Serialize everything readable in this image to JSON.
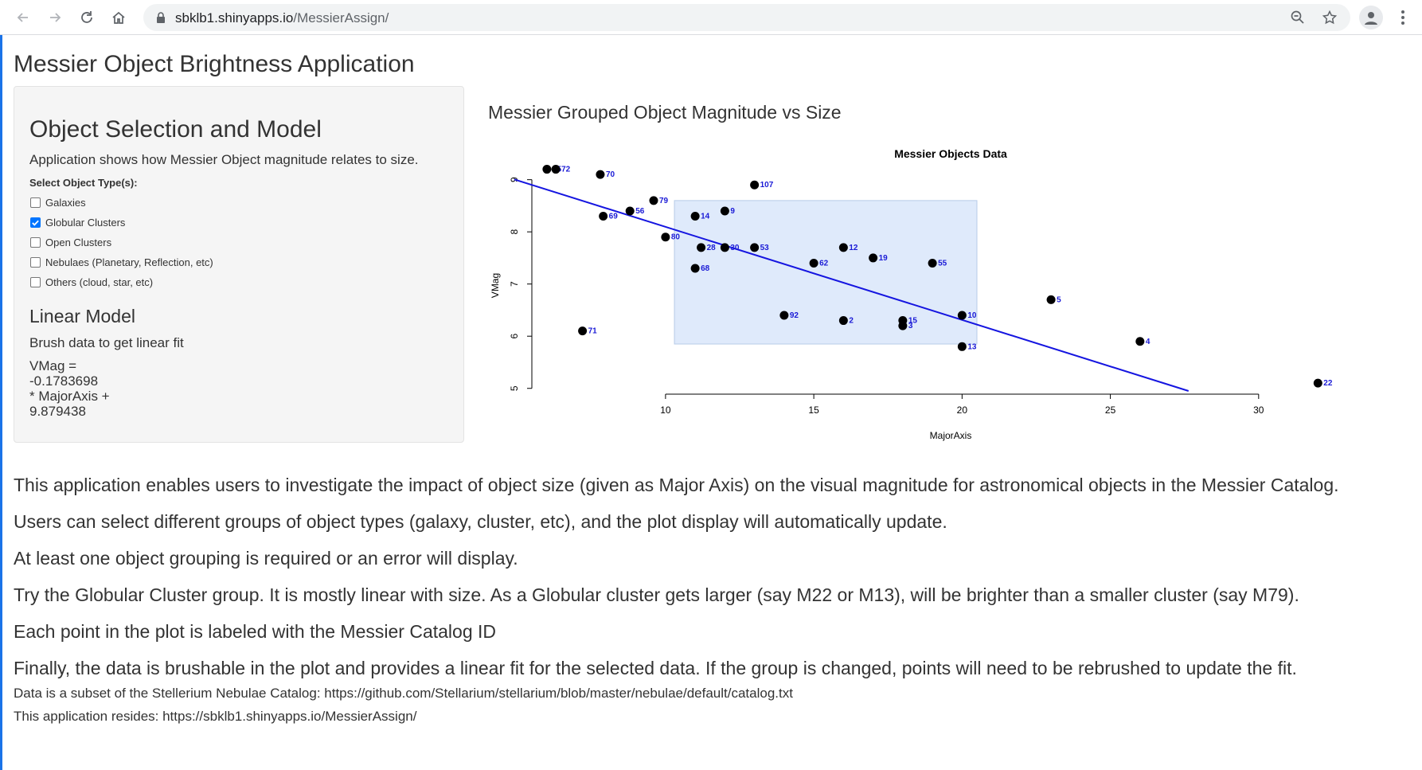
{
  "browser": {
    "url_host": "sbklb1.shinyapps.io",
    "url_path": "/MessierAssign/"
  },
  "app": {
    "title": "Messier Object Brightness Application"
  },
  "sidebar": {
    "heading": "Object Selection and Model",
    "description": "Application shows how Messier Object magnitude relates to size.",
    "select_label": "Select Object Type(s):",
    "options": [
      {
        "label": "Galaxies",
        "checked": false
      },
      {
        "label": "Globular Clusters",
        "checked": true
      },
      {
        "label": "Open Clusters",
        "checked": false
      },
      {
        "label": "Nebulaes (Planetary, Reflection, etc)",
        "checked": false
      },
      {
        "label": "Others (cloud, star, etc)",
        "checked": false
      }
    ],
    "model_heading": "Linear Model",
    "brush_hint": "Brush data to get linear fit",
    "model_lines": [
      "VMag =",
      "-0.1783698",
      "* MajorAxis +",
      "9.879438"
    ]
  },
  "plot_heading": "Messier Grouped Object Magnitude vs Size",
  "chart_data": {
    "type": "scatter",
    "title": "Messier Objects Data",
    "xlabel": "MajorAxis",
    "ylabel": "VMag",
    "xticks": [
      10,
      15,
      20,
      25,
      30
    ],
    "yticks": [
      5,
      6,
      7,
      8,
      9
    ],
    "xlim": [
      5.6,
      33.2
    ],
    "ylim": [
      4.95,
      9.3
    ],
    "point_color": "#000000",
    "label_color": "#1a1ad6",
    "points": [
      {
        "id": "75",
        "x": 6.0,
        "y": 9.2
      },
      {
        "id": "72",
        "x": 6.3,
        "y": 9.2
      },
      {
        "id": "70",
        "x": 7.8,
        "y": 9.1
      },
      {
        "id": "107",
        "x": 13.0,
        "y": 8.9
      },
      {
        "id": "79",
        "x": 9.6,
        "y": 8.6
      },
      {
        "id": "56",
        "x": 8.8,
        "y": 8.4
      },
      {
        "id": "69",
        "x": 7.9,
        "y": 8.3
      },
      {
        "id": "14",
        "x": 11.0,
        "y": 8.3
      },
      {
        "id": "9",
        "x": 12.0,
        "y": 8.4
      },
      {
        "id": "80",
        "x": 10.0,
        "y": 7.9
      },
      {
        "id": "28",
        "x": 11.2,
        "y": 7.7
      },
      {
        "id": "30",
        "x": 12.0,
        "y": 7.7
      },
      {
        "id": "53",
        "x": 13.0,
        "y": 7.7
      },
      {
        "id": "12",
        "x": 16.0,
        "y": 7.7
      },
      {
        "id": "19",
        "x": 17.0,
        "y": 7.5
      },
      {
        "id": "55",
        "x": 19.0,
        "y": 7.4
      },
      {
        "id": "62",
        "x": 15.0,
        "y": 7.4
      },
      {
        "id": "68",
        "x": 11.0,
        "y": 7.3
      },
      {
        "id": "5",
        "x": 23.0,
        "y": 6.7
      },
      {
        "id": "92",
        "x": 14.0,
        "y": 6.4
      },
      {
        "id": "2",
        "x": 16.0,
        "y": 6.3
      },
      {
        "id": "15",
        "x": 18.0,
        "y": 6.3
      },
      {
        "id": "3",
        "x": 18.0,
        "y": 6.2
      },
      {
        "id": "10",
        "x": 20.0,
        "y": 6.4
      },
      {
        "id": "71",
        "x": 7.2,
        "y": 6.1
      },
      {
        "id": "4",
        "x": 26.0,
        "y": 5.9
      },
      {
        "id": "13",
        "x": 20.0,
        "y": 5.8
      },
      {
        "id": "22",
        "x": 32.0,
        "y": 5.1
      }
    ],
    "fit": {
      "slope": -0.1783698,
      "intercept": 9.879438,
      "color": "#1515e0"
    },
    "brush": {
      "x": [
        10.3,
        20.5
      ],
      "y": [
        5.85,
        8.6
      ],
      "fill": "#dfeafb",
      "stroke": "#b8cbe8"
    }
  },
  "paragraphs": [
    "This application enables users to investigate the impact of object size (given as Major Axis) on the visual magnitude for astronomical objects in the Messier Catalog.",
    "Users can select different groups of object types (galaxy, cluster, etc), and the plot display will automatically update.",
    "At least one object grouping is required or an error will display.",
    "Try the Globular Cluster group. It is mostly linear with size. As a Globular cluster gets larger (say M22 or M13), will be brighter than a smaller cluster (say M79).",
    "Each point in the plot is labeled with the Messier Catalog ID",
    "Finally, the data is brushable in the plot and provides a linear fit for the selected data. If the group is changed, points will need to be rebrushed to update the fit."
  ],
  "footer": {
    "source": "Data is a subset of the Stellerium Nebulae Catalog: https://github.com/Stellarium/stellarium/blob/master/nebulae/default/catalog.txt",
    "resides": "This application resides: https://sbklb1.shinyapps.io/MessierAssign/"
  }
}
